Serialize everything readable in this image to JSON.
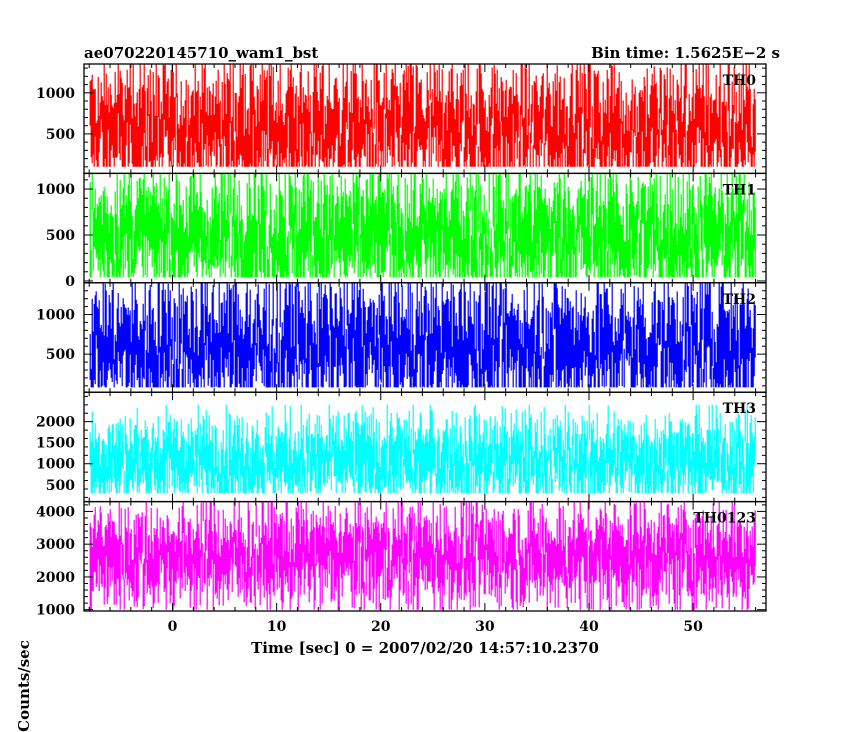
{
  "header": {
    "title": "ae070220145710_wam1_bst",
    "bin_time": "Bin time: 1.5625E−2 s"
  },
  "chart_data": {
    "type": "line",
    "title": "ae070220145710_wam1_bst",
    "xlabel": "Time [sec] 0 = 2007/02/20 14:57:10.2370",
    "ylabel": "Counts/sec",
    "x_range": [
      -8.5,
      57
    ],
    "x_ticks": [
      0,
      10,
      20,
      30,
      40,
      50
    ],
    "data_x_start": -7.9,
    "data_x_end": 56,
    "panels": [
      {
        "name": "TH0",
        "color": "#ff0000",
        "ylim": [
          20,
          1350
        ],
        "yticks": [
          500,
          1000
        ],
        "mean": 560,
        "noise": 240,
        "low": 100,
        "high": 1350
      },
      {
        "name": "TH1",
        "color": "#00ff00",
        "ylim": [
          -20,
          1170
        ],
        "yticks": [
          0,
          500,
          1000
        ],
        "mean": 500,
        "noise": 220,
        "low": 40,
        "high": 1170
      },
      {
        "name": "TH2",
        "color": "#0000ff",
        "ylim": [
          20,
          1400
        ],
        "yticks": [
          500,
          1000
        ],
        "mean": 600,
        "noise": 260,
        "low": 80,
        "high": 1400
      },
      {
        "name": "TH3",
        "color": "#00ffff",
        "ylim": [
          100,
          2700
        ],
        "yticks": [
          500,
          1000,
          1500,
          2000
        ],
        "mean": 1080,
        "noise": 330,
        "low": 300,
        "high": 2400
      },
      {
        "name": "TH0123",
        "color": "#ff00ff",
        "ylim": [
          960,
          4300
        ],
        "yticks": [
          1000,
          2000,
          3000,
          4000
        ],
        "mean": 2650,
        "noise": 480,
        "low": 1000,
        "high": 4300
      }
    ]
  }
}
